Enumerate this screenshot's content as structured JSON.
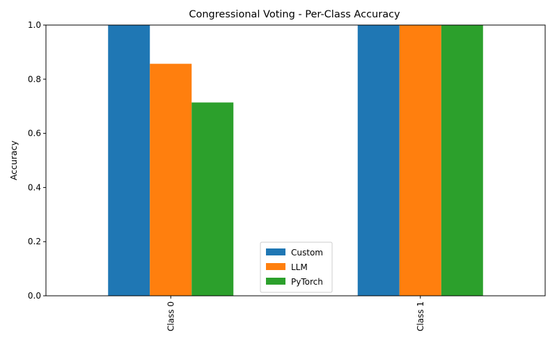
{
  "chart_data": {
    "type": "bar",
    "title": "Congressional Voting - Per-Class Accuracy",
    "xlabel": "",
    "ylabel": "Accuracy",
    "categories": [
      "Class 0",
      "Class 1"
    ],
    "series": [
      {
        "name": "Custom",
        "values": [
          1.0,
          1.0
        ]
      },
      {
        "name": "LLM",
        "values": [
          0.857,
          1.0
        ]
      },
      {
        "name": "PyTorch",
        "values": [
          0.714,
          1.0
        ]
      }
    ],
    "ylim": [
      0,
      1
    ],
    "yticks": [
      "0.0",
      "0.2",
      "0.4",
      "0.6",
      "0.8",
      "1.0"
    ],
    "grid": false,
    "legend": "lower center"
  },
  "colors": {
    "Custom": "#1f77b4",
    "LLM": "#ff7f0e",
    "PyTorch": "#2ca02c"
  }
}
